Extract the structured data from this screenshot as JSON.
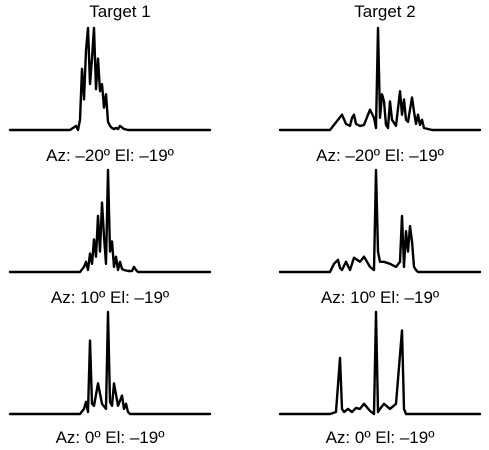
{
  "column_titles": [
    "Target 1",
    "Target 2"
  ],
  "captions": [
    [
      "Az: –20º El: –19º",
      "Az: –20º El: –19º"
    ],
    [
      "Az: 10º El: –19º",
      "Az: 10º El: –19º"
    ],
    [
      "Az: 0º El: –19º",
      "Az: 0º El: –19º"
    ]
  ],
  "chart_data": {
    "type": "line",
    "title": "",
    "xlabel": "",
    "ylabel": "",
    "xlim": [
      0,
      1
    ],
    "ylim": [
      0,
      1
    ],
    "grid": false,
    "panels": [
      {
        "row": 0,
        "col": 0,
        "target": "Target 1",
        "caption": "Az: –20º El: –19º",
        "x": [
          0.0,
          0.3,
          0.33,
          0.34,
          0.35,
          0.36,
          0.37,
          0.38,
          0.39,
          0.4,
          0.41,
          0.42,
          0.43,
          0.44,
          0.45,
          0.46,
          0.47,
          0.48,
          0.49,
          0.5,
          0.51,
          0.52,
          0.53,
          0.54,
          0.55,
          0.57,
          0.59,
          0.61,
          0.63,
          1.0
        ],
        "y": [
          0.0,
          0.0,
          0.04,
          0.0,
          0.1,
          0.6,
          0.3,
          0.78,
          1.0,
          0.45,
          0.7,
          1.0,
          0.4,
          0.7,
          0.38,
          0.45,
          0.22,
          0.35,
          0.08,
          0.04,
          0.02,
          0.01,
          0.02,
          0.01,
          0.04,
          0.01,
          0.0,
          0.0,
          0.0,
          0.0
        ]
      },
      {
        "row": 0,
        "col": 1,
        "target": "Target 2",
        "caption": "Az: –20º El: –19º",
        "x": [
          0.0,
          0.25,
          0.27,
          0.29,
          0.31,
          0.33,
          0.35,
          0.36,
          0.37,
          0.38,
          0.4,
          0.42,
          0.45,
          0.47,
          0.48,
          0.49,
          0.5,
          0.51,
          0.52,
          0.53,
          0.54,
          0.55,
          0.56,
          0.58,
          0.6,
          0.61,
          0.62,
          0.63,
          0.64,
          0.65,
          0.66,
          0.67,
          0.68,
          0.69,
          0.7,
          0.71,
          0.72,
          0.74,
          0.76,
          1.0
        ],
        "y": [
          0.0,
          0.0,
          0.05,
          0.1,
          0.15,
          0.06,
          0.04,
          0.12,
          0.15,
          0.06,
          0.04,
          0.05,
          0.2,
          0.12,
          0.02,
          1.0,
          0.12,
          0.35,
          0.28,
          0.05,
          0.02,
          0.28,
          0.1,
          0.04,
          0.38,
          0.15,
          0.3,
          0.1,
          0.08,
          0.2,
          0.32,
          0.18,
          0.06,
          0.15,
          0.05,
          0.1,
          0.02,
          0.01,
          0.0,
          0.0
        ]
      },
      {
        "row": 1,
        "col": 0,
        "target": "Target 1",
        "caption": "Az: 10º El: –19º",
        "x": [
          0.0,
          0.35,
          0.37,
          0.38,
          0.39,
          0.4,
          0.41,
          0.42,
          0.43,
          0.44,
          0.45,
          0.46,
          0.47,
          0.48,
          0.49,
          0.5,
          0.51,
          0.52,
          0.53,
          0.54,
          0.55,
          0.56,
          0.57,
          0.59,
          0.61,
          0.62,
          0.63,
          0.64,
          0.66,
          1.0
        ],
        "y": [
          0.0,
          0.0,
          0.05,
          0.1,
          0.02,
          0.18,
          0.08,
          0.32,
          0.15,
          0.55,
          0.2,
          0.68,
          0.35,
          0.08,
          1.0,
          0.2,
          0.3,
          0.05,
          0.15,
          0.02,
          0.1,
          0.03,
          0.02,
          0.01,
          0.01,
          0.05,
          0.02,
          0.0,
          0.0,
          0.0
        ]
      },
      {
        "row": 1,
        "col": 1,
        "target": "Target 2",
        "caption": "Az: 10º El: –19º",
        "x": [
          0.0,
          0.25,
          0.27,
          0.29,
          0.3,
          0.31,
          0.33,
          0.35,
          0.37,
          0.4,
          0.42,
          0.45,
          0.47,
          0.48,
          0.49,
          0.5,
          0.51,
          0.52,
          0.55,
          0.58,
          0.6,
          0.61,
          0.62,
          0.63,
          0.64,
          0.65,
          0.66,
          0.67,
          0.68,
          0.69,
          0.71,
          0.74,
          1.0
        ],
        "y": [
          0.0,
          0.0,
          0.08,
          0.12,
          0.04,
          0.02,
          0.1,
          0.02,
          0.14,
          0.1,
          0.15,
          0.05,
          0.02,
          1.0,
          0.2,
          0.1,
          0.1,
          0.1,
          0.08,
          0.05,
          0.1,
          0.55,
          0.05,
          0.4,
          0.2,
          0.45,
          0.3,
          0.05,
          0.02,
          0.0,
          0.0,
          0.0,
          0.0
        ]
      },
      {
        "row": 2,
        "col": 0,
        "target": "Target 1",
        "caption": "Az: 0º El: –19º",
        "x": [
          0.0,
          0.35,
          0.37,
          0.38,
          0.39,
          0.4,
          0.41,
          0.42,
          0.44,
          0.46,
          0.48,
          0.49,
          0.5,
          0.51,
          0.52,
          0.54,
          0.56,
          0.57,
          0.58,
          0.59,
          0.6,
          0.61,
          0.63,
          0.65,
          1.0
        ],
        "y": [
          0.0,
          0.0,
          0.05,
          0.12,
          0.02,
          0.72,
          0.1,
          0.08,
          0.3,
          0.1,
          0.05,
          1.0,
          0.12,
          0.08,
          0.3,
          0.08,
          0.18,
          0.05,
          0.1,
          0.02,
          0.0,
          0.0,
          0.0,
          0.0,
          0.0
        ]
      },
      {
        "row": 2,
        "col": 1,
        "target": "Target 2",
        "caption": "Az: 0º El: –19º",
        "x": [
          0.0,
          0.25,
          0.28,
          0.3,
          0.31,
          0.32,
          0.34,
          0.36,
          0.38,
          0.4,
          0.42,
          0.45,
          0.47,
          0.48,
          0.49,
          0.5,
          0.52,
          0.55,
          0.58,
          0.61,
          0.62,
          0.63,
          0.65,
          0.67,
          0.69,
          1.0
        ],
        "y": [
          0.0,
          0.0,
          0.02,
          0.55,
          0.05,
          0.02,
          0.05,
          0.02,
          0.06,
          0.05,
          0.1,
          0.03,
          0.0,
          1.0,
          0.02,
          0.05,
          0.1,
          0.05,
          0.1,
          0.82,
          0.05,
          0.0,
          0.0,
          0.0,
          0.0,
          0.0
        ]
      }
    ]
  }
}
